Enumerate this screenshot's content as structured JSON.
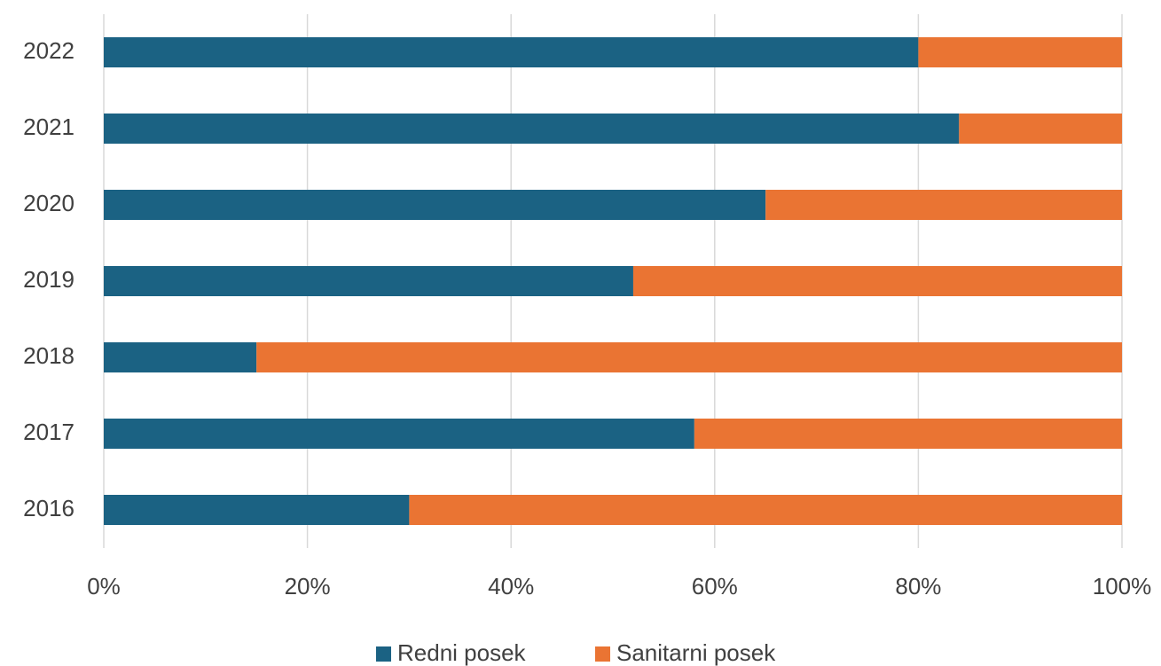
{
  "chart_data": {
    "type": "stacked_bar_horizontal",
    "categories": [
      "2022",
      "2021",
      "2020",
      "2019",
      "2018",
      "2017",
      "2016"
    ],
    "series": [
      {
        "name": "Redni posek",
        "color": "#1b6283",
        "values": [
          80,
          84,
          65,
          52,
          15,
          58,
          30
        ]
      },
      {
        "name": "Sanitarni posek",
        "color": "#ea7433",
        "values": [
          20,
          16,
          35,
          48,
          85,
          42,
          70
        ]
      }
    ],
    "xlim": [
      0,
      100
    ],
    "xticks": [
      {
        "value": 0,
        "label": "0%"
      },
      {
        "value": 20,
        "label": "20%"
      },
      {
        "value": 40,
        "label": "40%"
      },
      {
        "value": 60,
        "label": "60%"
      },
      {
        "value": 80,
        "label": "80%"
      },
      {
        "value": 100,
        "label": "100%"
      }
    ],
    "grid": true,
    "legend": "bottom"
  }
}
